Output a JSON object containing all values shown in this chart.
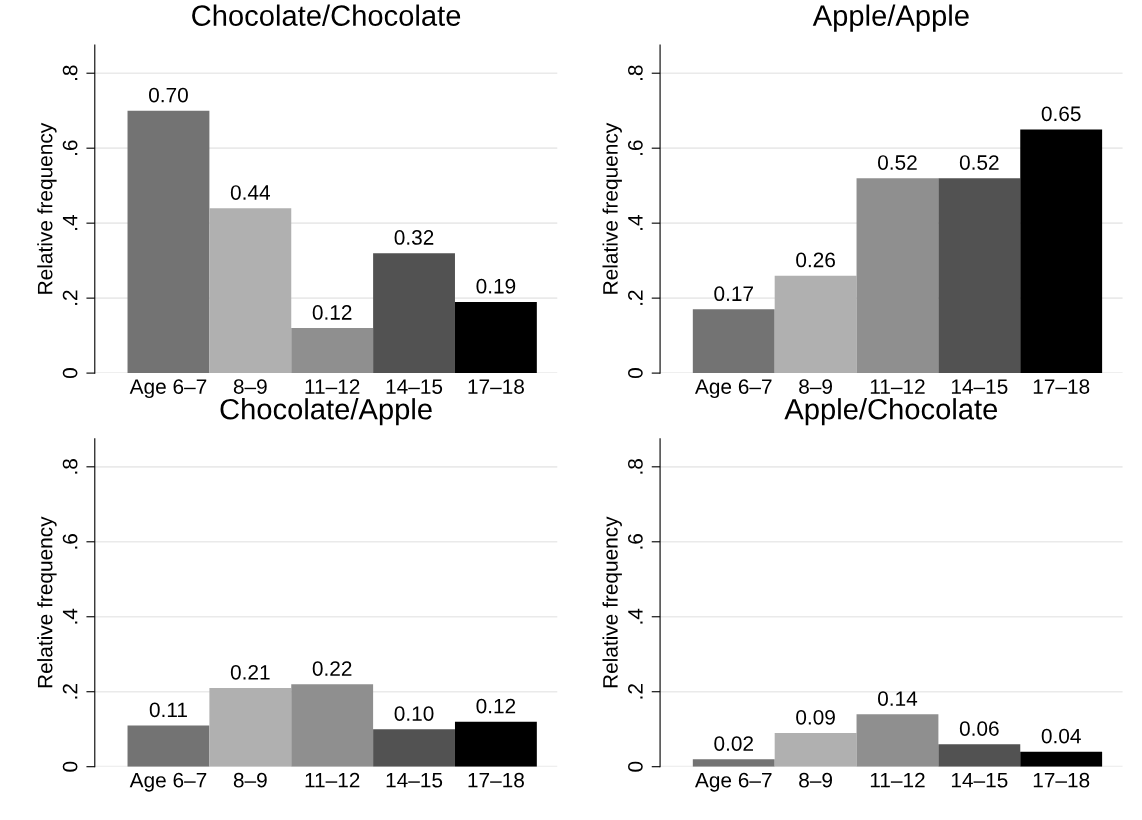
{
  "chart_data": [
    {
      "type": "bar",
      "title": "Chocolate/Chocolate",
      "ylabel": "Relative frequency",
      "categories": [
        "Age 6–7",
        "8–9",
        "11–12",
        "14–15",
        "17–18"
      ],
      "values": [
        0.7,
        0.44,
        0.12,
        0.32,
        0.19
      ],
      "value_labels": [
        "0.70",
        "0.44",
        "0.12",
        "0.32",
        "0.19"
      ],
      "colors": [
        "#737373",
        "#b0b0b0",
        "#8f8f8f",
        "#525252",
        "#000000"
      ],
      "ylim": [
        0,
        0.875
      ],
      "yticks": [
        0,
        {
          "value": 0.2,
          "label": ".2"
        },
        {
          "value": 0.4,
          "label": ".4"
        },
        {
          "value": 0.6,
          "label": ".6"
        },
        {
          "value": 0.8,
          "label": ".8"
        }
      ],
      "grid": "y"
    },
    {
      "type": "bar",
      "title": "Apple/Apple",
      "ylabel": "Relative frequency",
      "categories": [
        "Age 6–7",
        "8–9",
        "11–12",
        "14–15",
        "17–18"
      ],
      "values": [
        0.17,
        0.26,
        0.52,
        0.52,
        0.65
      ],
      "value_labels": [
        "0.17",
        "0.26",
        "0.52",
        "0.52",
        "0.65"
      ],
      "colors": [
        "#737373",
        "#b0b0b0",
        "#8f8f8f",
        "#525252",
        "#000000"
      ],
      "ylim": [
        0,
        0.875
      ],
      "yticks": [
        0,
        {
          "value": 0.2,
          "label": ".2"
        },
        {
          "value": 0.4,
          "label": ".4"
        },
        {
          "value": 0.6,
          "label": ".6"
        },
        {
          "value": 0.8,
          "label": ".8"
        }
      ],
      "grid": "y"
    },
    {
      "type": "bar",
      "title": "Chocolate/Apple",
      "ylabel": "Relative frequency",
      "categories": [
        "Age 6–7",
        "8–9",
        "11–12",
        "14–15",
        "17–18"
      ],
      "values": [
        0.11,
        0.21,
        0.22,
        0.1,
        0.12
      ],
      "value_labels": [
        "0.11",
        "0.21",
        "0.22",
        "0.10",
        "0.12"
      ],
      "colors": [
        "#737373",
        "#b0b0b0",
        "#8f8f8f",
        "#525252",
        "#000000"
      ],
      "ylim": [
        0,
        0.875
      ],
      "yticks": [
        0,
        {
          "value": 0.2,
          "label": ".2"
        },
        {
          "value": 0.4,
          "label": ".4"
        },
        {
          "value": 0.6,
          "label": ".6"
        },
        {
          "value": 0.8,
          "label": ".8"
        }
      ],
      "grid": "y"
    },
    {
      "type": "bar",
      "title": "Apple/Chocolate",
      "ylabel": "Relative frequency",
      "categories": [
        "Age 6–7",
        "8–9",
        "11–12",
        "14–15",
        "17–18"
      ],
      "values": [
        0.02,
        0.09,
        0.14,
        0.06,
        0.04
      ],
      "value_labels": [
        "0.02",
        "0.09",
        "0.14",
        "0.06",
        "0.04"
      ],
      "colors": [
        "#737373",
        "#b0b0b0",
        "#8f8f8f",
        "#525252",
        "#000000"
      ],
      "ylim": [
        0,
        0.875
      ],
      "yticks": [
        0,
        {
          "value": 0.2,
          "label": ".2"
        },
        {
          "value": 0.4,
          "label": ".4"
        },
        {
          "value": 0.6,
          "label": ".6"
        },
        {
          "value": 0.8,
          "label": ".8"
        }
      ],
      "grid": "y"
    }
  ]
}
